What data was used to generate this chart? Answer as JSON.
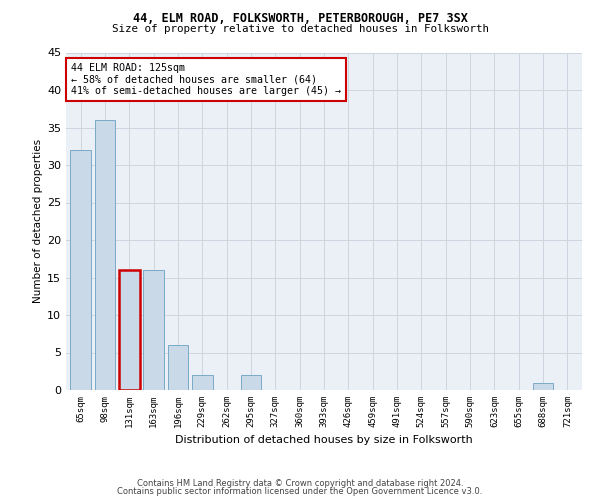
{
  "title1": "44, ELM ROAD, FOLKSWORTH, PETERBOROUGH, PE7 3SX",
  "title2": "Size of property relative to detached houses in Folksworth",
  "xlabel": "Distribution of detached houses by size in Folksworth",
  "ylabel": "Number of detached properties",
  "bar_color": "#c9d9e8",
  "bar_edge_color": "#7aaac8",
  "categories": [
    "65sqm",
    "98sqm",
    "131sqm",
    "163sqm",
    "196sqm",
    "229sqm",
    "262sqm",
    "295sqm",
    "327sqm",
    "360sqm",
    "393sqm",
    "426sqm",
    "459sqm",
    "491sqm",
    "524sqm",
    "557sqm",
    "590sqm",
    "623sqm",
    "655sqm",
    "688sqm",
    "721sqm"
  ],
  "values": [
    32,
    36,
    16,
    16,
    6,
    2,
    0,
    2,
    0,
    0,
    0,
    0,
    0,
    0,
    0,
    0,
    0,
    0,
    0,
    1,
    0
  ],
  "ylim": [
    0,
    45
  ],
  "yticks": [
    0,
    5,
    10,
    15,
    20,
    25,
    30,
    35,
    40,
    45
  ],
  "annotation_line1": "44 ELM ROAD: 125sqm",
  "annotation_line2": "← 58% of detached houses are smaller (64)",
  "annotation_line3": "41% of semi-detached houses are larger (45) →",
  "highlight_bar_index": 2,
  "highlight_bar_edge_color": "#cc0000",
  "grid_color": "#ccd5e0",
  "background_color": "#eaf0f6",
  "footer1": "Contains HM Land Registry data © Crown copyright and database right 2024.",
  "footer2": "Contains public sector information licensed under the Open Government Licence v3.0."
}
